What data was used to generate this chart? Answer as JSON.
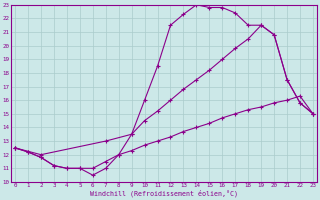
{
  "xlabel": "Windchill (Refroidissement éolien,°C)",
  "bg_color": "#cce8e8",
  "line_color": "#8b008b",
  "grid_color": "#aacccc",
  "xmin": 0,
  "xmax": 23,
  "ymin": 10,
  "ymax": 23,
  "line1_x": [
    0,
    1,
    2,
    3,
    4,
    5,
    6,
    7,
    8,
    9,
    10,
    11,
    12,
    13,
    14,
    15,
    16,
    17,
    18,
    19,
    20,
    21,
    22,
    23
  ],
  "line1_y": [
    12.5,
    12.2,
    11.8,
    11.2,
    11.0,
    11.0,
    10.5,
    11.0,
    12.0,
    13.5,
    16.0,
    18.5,
    21.5,
    22.3,
    23.0,
    22.8,
    22.8,
    22.4,
    21.5,
    21.5,
    20.8,
    17.5,
    15.8,
    15.0
  ],
  "line2_x": [
    0,
    2,
    7,
    9,
    10,
    11,
    12,
    13,
    14,
    15,
    16,
    17,
    18,
    19,
    20,
    21,
    22,
    23
  ],
  "line2_y": [
    12.5,
    12.0,
    13.0,
    13.5,
    14.5,
    15.2,
    16.0,
    16.8,
    17.5,
    18.2,
    19.0,
    19.8,
    20.5,
    21.5,
    20.8,
    17.5,
    15.8,
    15.0
  ],
  "line3_x": [
    0,
    1,
    2,
    3,
    4,
    5,
    6,
    7,
    8,
    9,
    10,
    11,
    12,
    13,
    14,
    15,
    16,
    17,
    18,
    19,
    20,
    21,
    22,
    23
  ],
  "line3_y": [
    12.5,
    12.2,
    11.8,
    11.2,
    11.0,
    11.0,
    11.0,
    11.5,
    12.0,
    12.3,
    12.7,
    13.0,
    13.3,
    13.7,
    14.0,
    14.3,
    14.7,
    15.0,
    15.3,
    15.5,
    15.8,
    16.0,
    16.3,
    15.0
  ]
}
